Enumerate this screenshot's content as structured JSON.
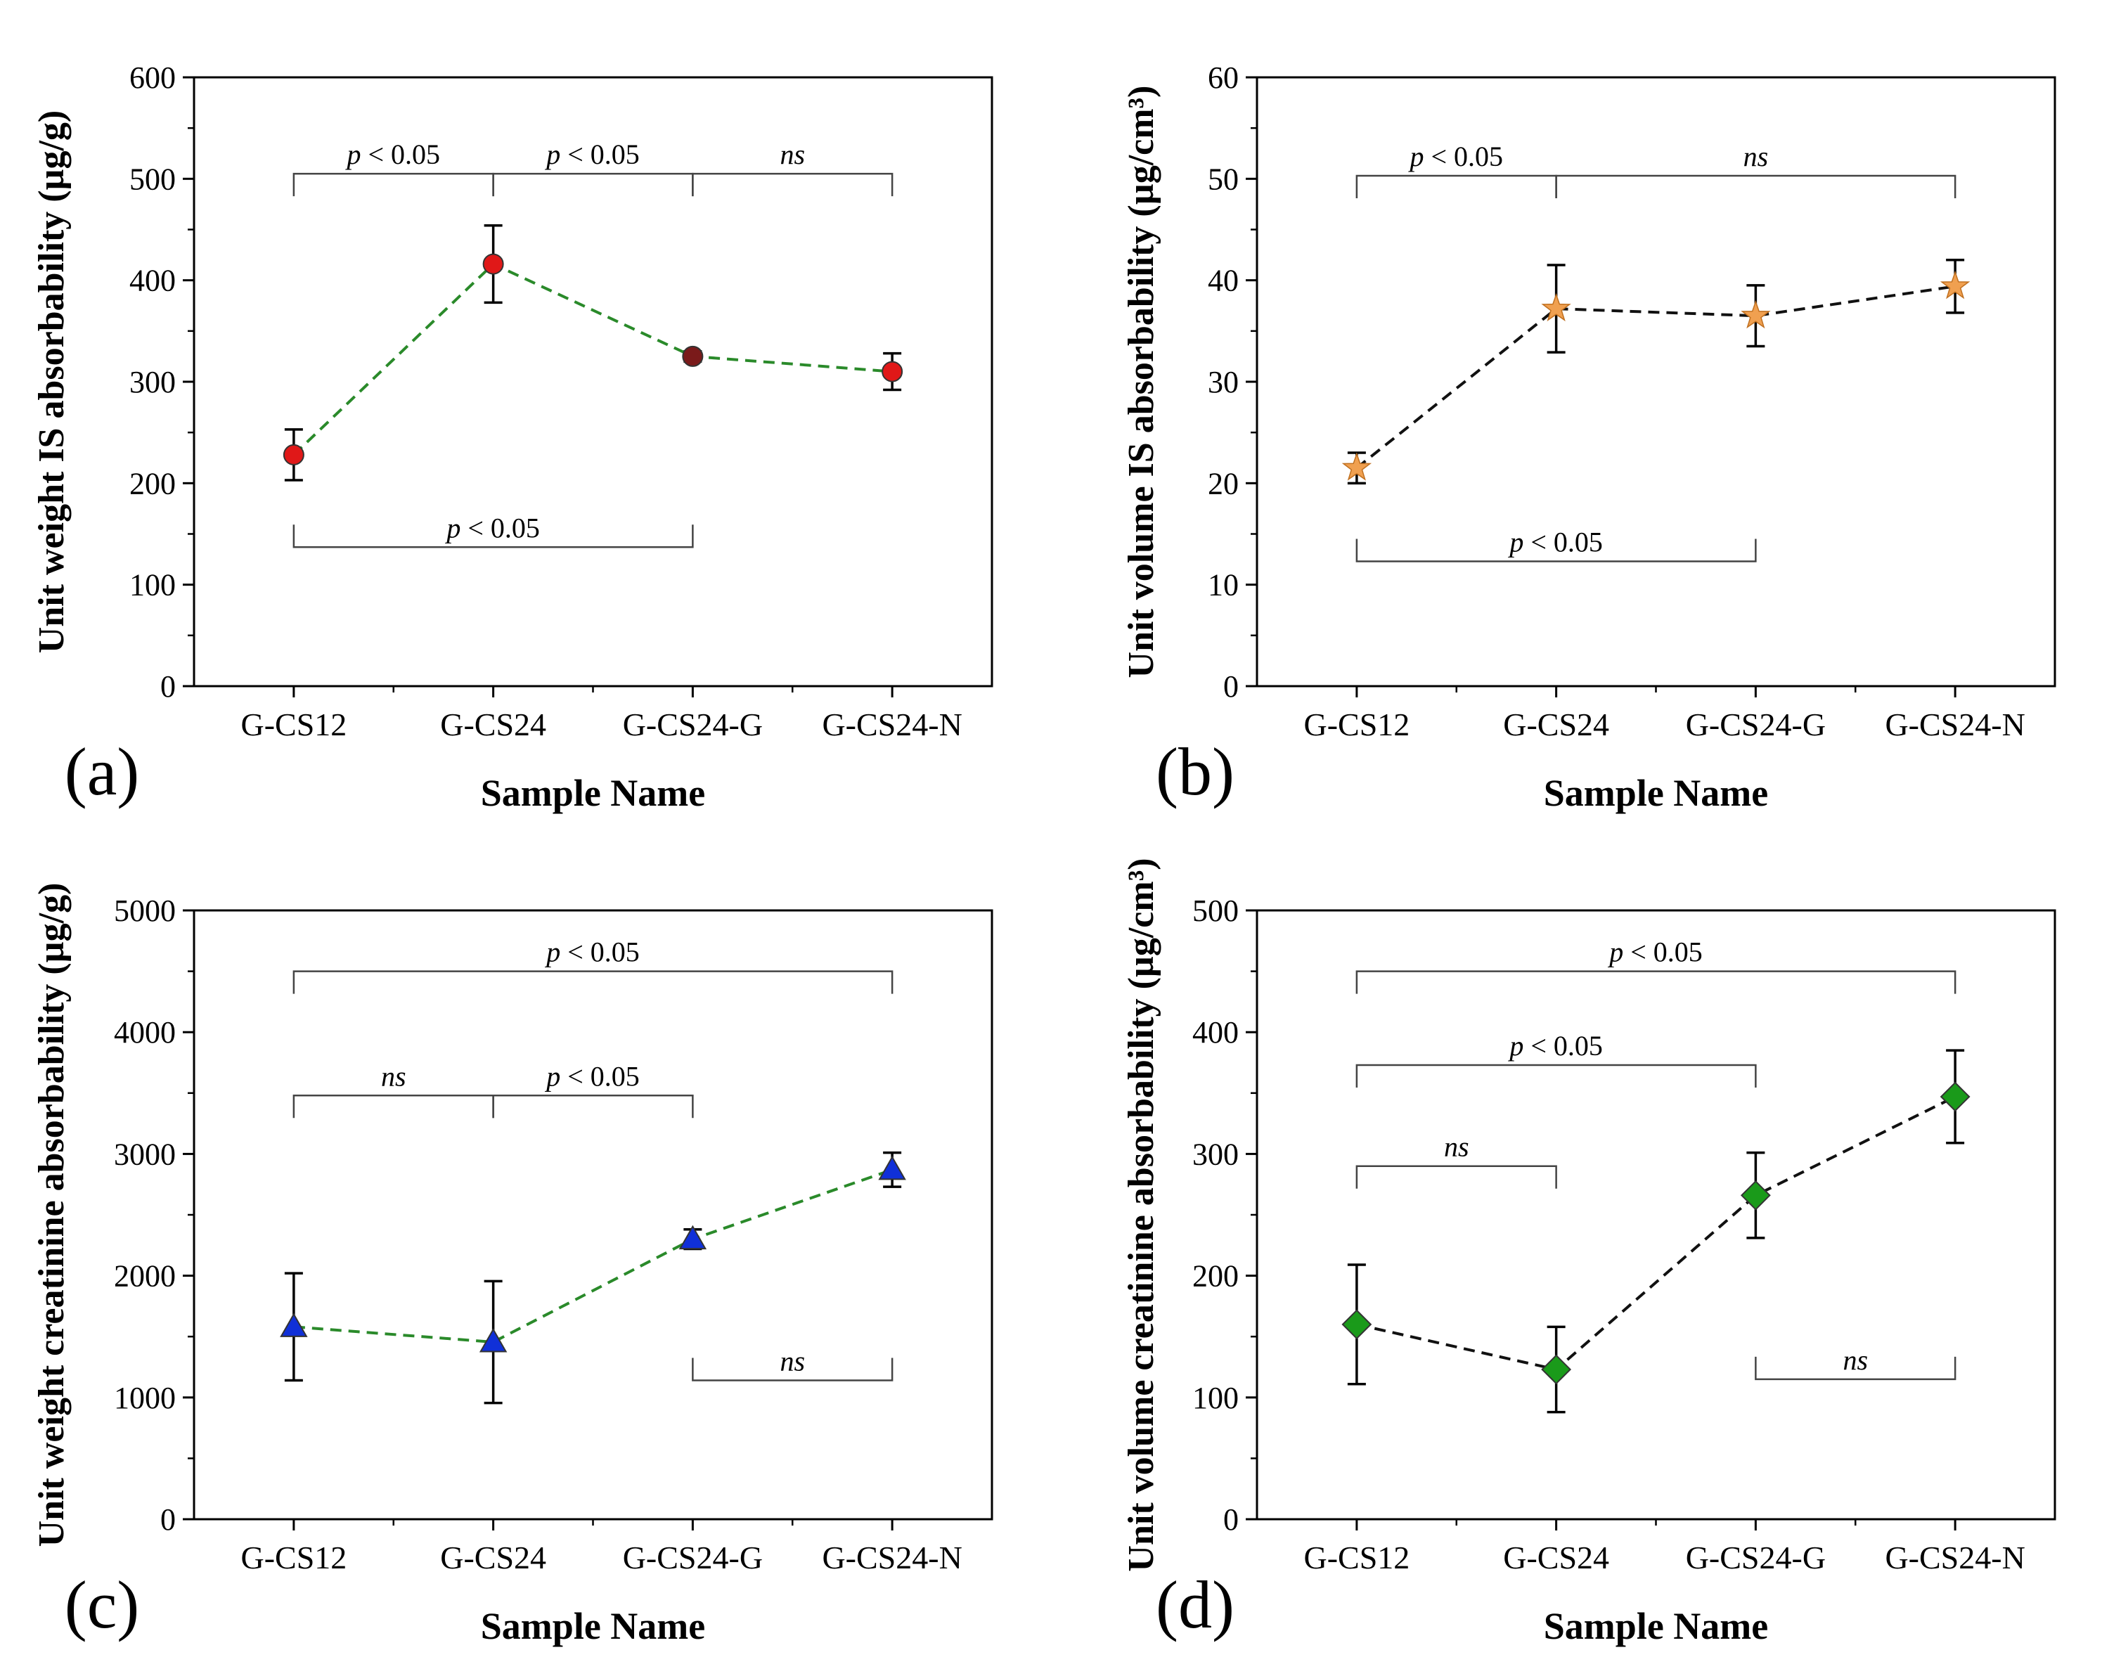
{
  "chart_data": [
    {
      "panel": "(a)",
      "type": "line",
      "categories": [
        "G-CS12",
        "G-CS24",
        "G-CS24-G",
        "G-CS24-N"
      ],
      "values": [
        228,
        416,
        325,
        310
      ],
      "errors": [
        25,
        38,
        5,
        18
      ],
      "xlabel": "Sample Name",
      "ylabel": "Unit weight IS absorbability (µg/g)",
      "ylim": [
        0,
        600
      ],
      "yticks": [
        "0",
        "100",
        "200",
        "300",
        "400",
        "500",
        "600"
      ],
      "marker": "circle",
      "marker_color": "#e01818",
      "marker_colors": [
        "#e01818",
        "#e01818",
        "#7a1a1a",
        "#e01818"
      ],
      "line_color": "#2a8a2a",
      "annotations": [
        {
          "from": "G-CS12",
          "to": "G-CS24",
          "y": 505,
          "side": "above",
          "label": "p < 0.05"
        },
        {
          "from": "G-CS24",
          "to": "G-CS24-G",
          "y": 505,
          "side": "above",
          "label": "p < 0.05"
        },
        {
          "from": "G-CS24-G",
          "to": "G-CS24-N",
          "y": 505,
          "side": "above",
          "label": "ns"
        },
        {
          "from": "G-CS12",
          "to": "G-CS24-G",
          "y": 137,
          "side": "below",
          "label": "p < 0.05"
        }
      ]
    },
    {
      "panel": "(b)",
      "type": "line",
      "categories": [
        "G-CS12",
        "G-CS24",
        "G-CS24-G",
        "G-CS24-N"
      ],
      "values": [
        21.5,
        37.2,
        36.5,
        39.4
      ],
      "errors": [
        1.5,
        4.3,
        3.0,
        2.6
      ],
      "xlabel": "Sample Name",
      "ylabel": "Unit volume IS absorbability (µg/cm³)",
      "ylim": [
        0,
        60
      ],
      "yticks": [
        "0",
        "10",
        "20",
        "30",
        "40",
        "50",
        "60"
      ],
      "marker": "star",
      "marker_color": "#f0a050",
      "line_color": "#111111",
      "annotations": [
        {
          "from": "G-CS12",
          "to": "G-CS24",
          "y": 50.3,
          "side": "above",
          "label": "p < 0.05"
        },
        {
          "from": "G-CS24",
          "to": "G-CS24-N",
          "y": 50.3,
          "side": "above",
          "label": "ns"
        },
        {
          "from": "G-CS12",
          "to": "G-CS24-G",
          "y": 12.3,
          "side": "below",
          "label": "p < 0.05"
        }
      ]
    },
    {
      "panel": "(c)",
      "type": "line",
      "categories": [
        "G-CS12",
        "G-CS24",
        "G-CS24-G",
        "G-CS24-N"
      ],
      "values": [
        1580,
        1455,
        2300,
        2870
      ],
      "errors": [
        440,
        500,
        80,
        140
      ],
      "xlabel": "Sample Name",
      "ylabel": "Unit weight creatinine absorbability (µg/g)",
      "ylim": [
        0,
        5000
      ],
      "yticks": [
        "0",
        "1000",
        "2000",
        "3000",
        "4000",
        "5000"
      ],
      "marker": "triangle",
      "marker_color": "#1030d8",
      "line_color": "#2a8a2a",
      "annotations": [
        {
          "from": "G-CS12",
          "to": "G-CS24-N",
          "y": 4500,
          "side": "above",
          "label": "p < 0.05"
        },
        {
          "from": "G-CS12",
          "to": "G-CS24",
          "y": 3480,
          "side": "above",
          "label": "ns"
        },
        {
          "from": "G-CS24",
          "to": "G-CS24-G",
          "y": 3480,
          "side": "above",
          "label": "p < 0.05"
        },
        {
          "from": "G-CS24-G",
          "to": "G-CS24-N",
          "y": 1140,
          "side": "below",
          "label": "ns"
        }
      ]
    },
    {
      "panel": "(d)",
      "type": "line",
      "categories": [
        "G-CS12",
        "G-CS24",
        "G-CS24-G",
        "G-CS24-N"
      ],
      "values": [
        160,
        123,
        266,
        347
      ],
      "errors": [
        49,
        35,
        35,
        38
      ],
      "xlabel": "Sample Name",
      "ylabel": "Unit volume creatinine absorbability (µg/cm³)",
      "ylim": [
        0,
        500
      ],
      "yticks": [
        "0",
        "100",
        "200",
        "300",
        "400",
        "500"
      ],
      "marker": "diamond",
      "marker_color": "#1a9a1a",
      "line_color": "#111111",
      "annotations": [
        {
          "from": "G-CS12",
          "to": "G-CS24-N",
          "y": 450,
          "side": "above",
          "label": "p < 0.05"
        },
        {
          "from": "G-CS12",
          "to": "G-CS24-G",
          "y": 373,
          "side": "above",
          "label": "p < 0.05"
        },
        {
          "from": "G-CS12",
          "to": "G-CS24",
          "y": 290,
          "side": "above",
          "label": "ns"
        },
        {
          "from": "G-CS24-G",
          "to": "G-CS24-N",
          "y": 115,
          "side": "below",
          "label": "ns"
        }
      ]
    }
  ]
}
